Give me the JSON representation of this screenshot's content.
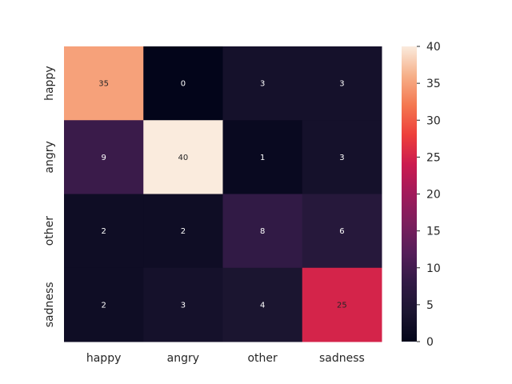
{
  "chart_data": {
    "type": "heatmap",
    "title": "",
    "xlabel": "",
    "ylabel": "",
    "x_categories": [
      "happy",
      "angry",
      "other",
      "sadness"
    ],
    "y_categories": [
      "happy",
      "angry",
      "other",
      "sadness"
    ],
    "values": [
      [
        35,
        0,
        3,
        3
      ],
      [
        9,
        40,
        1,
        3
      ],
      [
        2,
        2,
        8,
        6
      ],
      [
        2,
        3,
        4,
        25
      ]
    ],
    "annotations": true,
    "colormap": "rocket",
    "colorbar": {
      "range": [
        0,
        40
      ],
      "ticks": [
        0,
        5,
        10,
        15,
        20,
        25,
        30,
        35,
        40
      ]
    },
    "grid": false
  }
}
